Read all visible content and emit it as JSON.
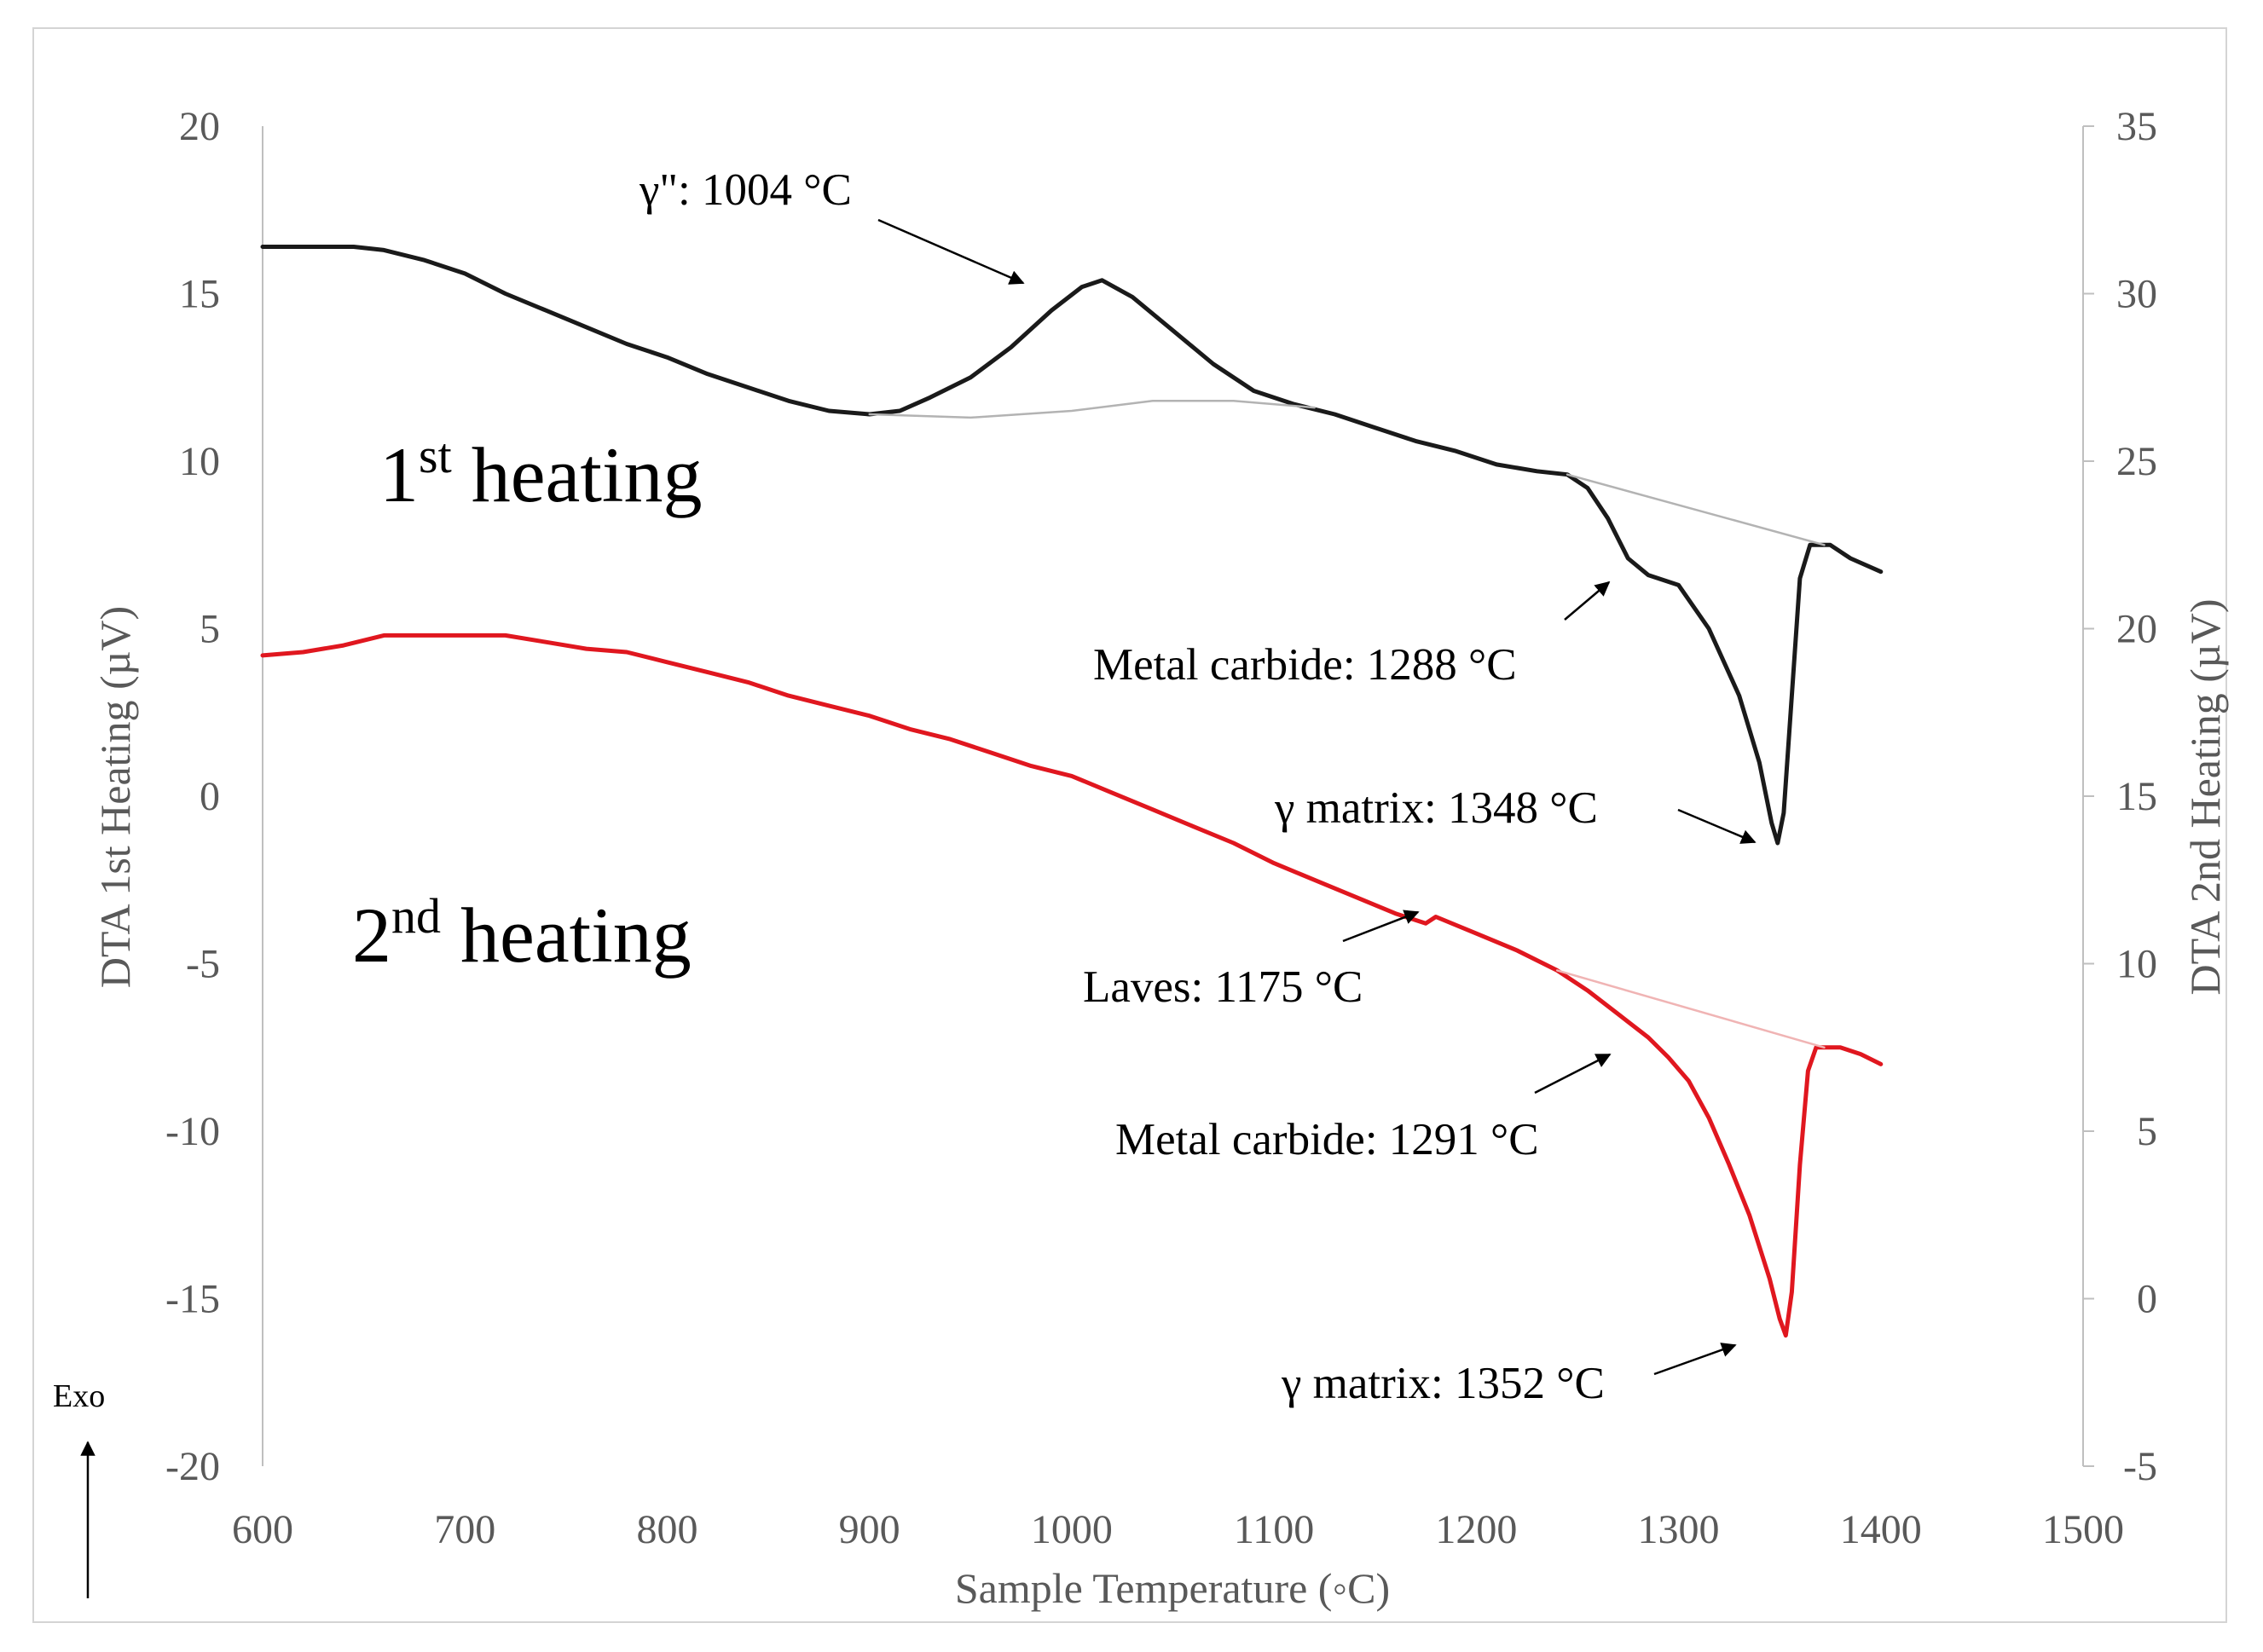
{
  "chart_data": {
    "type": "line",
    "title": "",
    "xlabel": "Sample Temperature (◦C)",
    "ylabel_left": "DTA 1st Heating (µV)",
    "ylabel_right": "DTA 2nd Heating (µV)",
    "xlim": [
      600,
      1500
    ],
    "ylim_left": [
      -20,
      20
    ],
    "ylim_right": [
      -5,
      35
    ],
    "x_ticks": [
      "600",
      "700",
      "800",
      "900",
      "1000",
      "1100",
      "1200",
      "1300",
      "1400",
      "1500"
    ],
    "y_left_ticks": [
      "20",
      "15",
      "10",
      "5",
      "0",
      "-5",
      "-10",
      "-15",
      "-20"
    ],
    "y_right_ticks": [
      "35",
      "30",
      "25",
      "20",
      "15",
      "10",
      "5",
      "0",
      "-5"
    ],
    "grid": false,
    "legend": "none",
    "series": [
      {
        "axis": "left",
        "color": "#1a1a1a",
        "points": [
          [
            600,
            16.4
          ],
          [
            620,
            16.4
          ],
          [
            645,
            16.4
          ],
          [
            660,
            16.3
          ],
          [
            680,
            16.0
          ],
          [
            700,
            15.6
          ],
          [
            720,
            15.0
          ],
          [
            740,
            14.5
          ],
          [
            760,
            14.0
          ],
          [
            780,
            13.5
          ],
          [
            800,
            13.1
          ],
          [
            820,
            12.6
          ],
          [
            840,
            12.2
          ],
          [
            860,
            11.8
          ],
          [
            880,
            11.5
          ],
          [
            900,
            11.4
          ],
          [
            915,
            11.5
          ],
          [
            930,
            11.9
          ],
          [
            950,
            12.5
          ],
          [
            970,
            13.4
          ],
          [
            990,
            14.5
          ],
          [
            1005,
            15.2
          ],
          [
            1015,
            15.4
          ],
          [
            1030,
            14.9
          ],
          [
            1050,
            13.9
          ],
          [
            1070,
            12.9
          ],
          [
            1090,
            12.1
          ],
          [
            1110,
            11.7
          ],
          [
            1130,
            11.4
          ],
          [
            1150,
            11.0
          ],
          [
            1170,
            10.6
          ],
          [
            1190,
            10.3
          ],
          [
            1210,
            9.9
          ],
          [
            1230,
            9.7
          ],
          [
            1245,
            9.6
          ],
          [
            1255,
            9.2
          ],
          [
            1265,
            8.3
          ],
          [
            1275,
            7.1
          ],
          [
            1285,
            6.6
          ],
          [
            1300,
            6.3
          ],
          [
            1315,
            5.0
          ],
          [
            1330,
            3.0
          ],
          [
            1340,
            1.0
          ],
          [
            1346,
            -0.8
          ],
          [
            1349,
            -1.4
          ],
          [
            1352,
            -0.5
          ],
          [
            1356,
            3.0
          ],
          [
            1360,
            6.5
          ],
          [
            1365,
            7.5
          ],
          [
            1375,
            7.5
          ],
          [
            1385,
            7.1
          ],
          [
            1400,
            6.7
          ]
        ]
      },
      {
        "axis": "left",
        "color": "#b3b3b3",
        "points": [
          [
            900,
            11.4
          ],
          [
            950,
            11.3
          ],
          [
            1000,
            11.5
          ],
          [
            1040,
            11.8
          ],
          [
            1080,
            11.8
          ],
          [
            1120,
            11.6
          ]
        ]
      },
      {
        "axis": "left",
        "color": "#b3b3b3",
        "points": [
          [
            1245,
            9.6
          ],
          [
            1372,
            7.5
          ]
        ]
      },
      {
        "axis": "right",
        "color": "#e0171f",
        "points": [
          [
            600,
            19.2
          ],
          [
            620,
            19.3
          ],
          [
            640,
            19.5
          ],
          [
            660,
            19.8
          ],
          [
            680,
            19.8
          ],
          [
            700,
            19.8
          ],
          [
            720,
            19.8
          ],
          [
            740,
            19.6
          ],
          [
            760,
            19.4
          ],
          [
            780,
            19.3
          ],
          [
            800,
            19.0
          ],
          [
            820,
            18.7
          ],
          [
            840,
            18.4
          ],
          [
            860,
            18.0
          ],
          [
            880,
            17.7
          ],
          [
            900,
            17.4
          ],
          [
            920,
            17.0
          ],
          [
            940,
            16.7
          ],
          [
            960,
            16.3
          ],
          [
            980,
            15.9
          ],
          [
            1000,
            15.6
          ],
          [
            1020,
            15.1
          ],
          [
            1040,
            14.6
          ],
          [
            1060,
            14.1
          ],
          [
            1080,
            13.6
          ],
          [
            1100,
            13.0
          ],
          [
            1120,
            12.5
          ],
          [
            1140,
            12.0
          ],
          [
            1160,
            11.5
          ],
          [
            1170,
            11.3
          ],
          [
            1175,
            11.2
          ],
          [
            1180,
            11.4
          ],
          [
            1200,
            10.9
          ],
          [
            1220,
            10.4
          ],
          [
            1240,
            9.8
          ],
          [
            1255,
            9.2
          ],
          [
            1270,
            8.5
          ],
          [
            1285,
            7.8
          ],
          [
            1295,
            7.2
          ],
          [
            1305,
            6.5
          ],
          [
            1315,
            5.4
          ],
          [
            1325,
            4.0
          ],
          [
            1335,
            2.5
          ],
          [
            1345,
            0.6
          ],
          [
            1350,
            -0.6
          ],
          [
            1353,
            -1.1
          ],
          [
            1356,
            0.2
          ],
          [
            1360,
            4.0
          ],
          [
            1364,
            6.8
          ],
          [
            1368,
            7.5
          ],
          [
            1380,
            7.5
          ],
          [
            1390,
            7.3
          ],
          [
            1400,
            7.0
          ]
        ]
      },
      {
        "axis": "right",
        "color": "#f0b4b4",
        "points": [
          [
            1240,
            9.8
          ],
          [
            1372,
            7.5
          ]
        ]
      }
    ],
    "annotations": [
      {
        "text": "γ\": 1004 °C",
        "temperature": 1004
      },
      {
        "text": "Metal carbide:  1288 °C",
        "temperature": 1288
      },
      {
        "text": "γ matrix:  1348 °C",
        "temperature": 1348
      },
      {
        "text": "Laves:  1175 °C",
        "temperature": 1175
      },
      {
        "text": "Metal carbide:  1291 °C",
        "temperature": 1291
      },
      {
        "text": "γ matrix:  1352 °C",
        "temperature": 1352
      }
    ],
    "labels": {
      "first_num": "1",
      "first_sup": "st",
      "first_rest": " heating",
      "second_num": "2",
      "second_sup": "nd",
      "second_rest": " heating",
      "exo": "Exo"
    }
  }
}
